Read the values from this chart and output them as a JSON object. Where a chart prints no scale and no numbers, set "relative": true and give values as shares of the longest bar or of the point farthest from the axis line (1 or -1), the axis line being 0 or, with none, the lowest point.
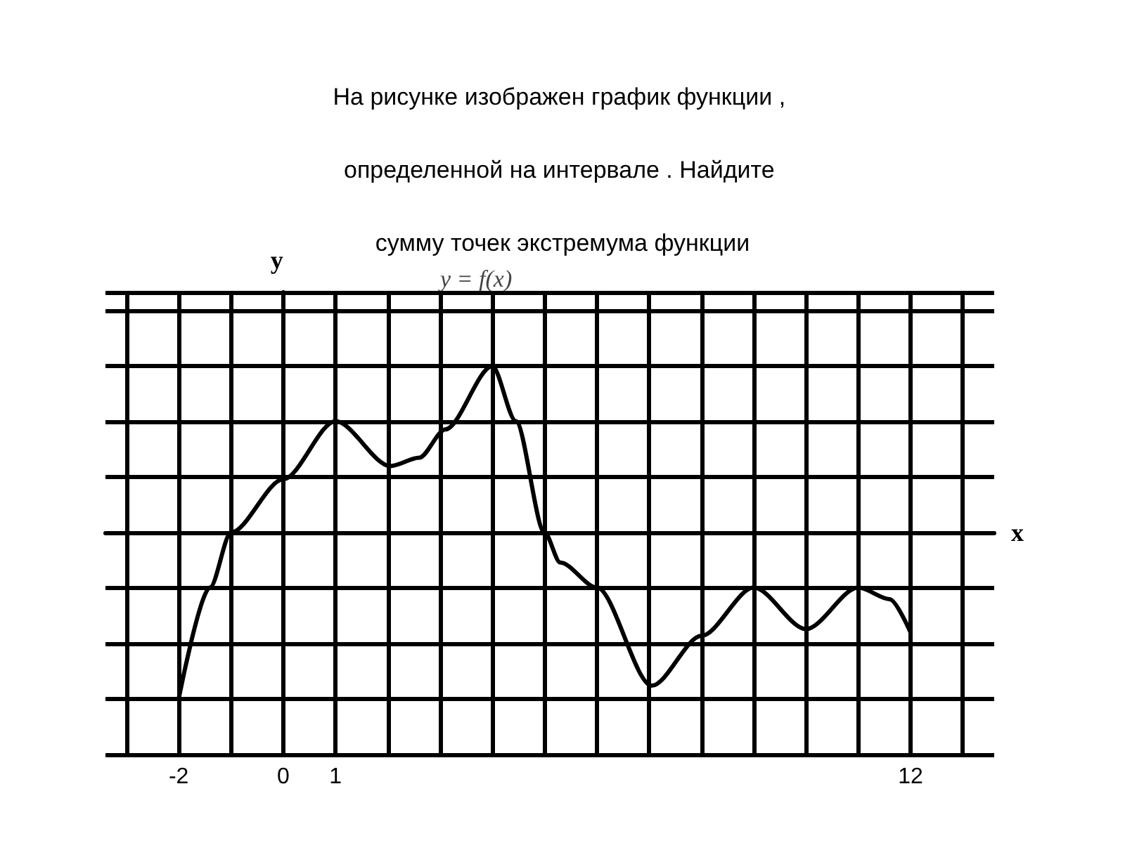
{
  "chart_data": {
    "type": "line",
    "title": "На рисунке изображен график функции , определенной на интервале . Найдите сумму точек экстремума функции",
    "xlabel": "x",
    "ylabel": "y",
    "annotations": [
      "y = f(x)"
    ],
    "relative": true,
    "x": [
      -2,
      -1.4,
      -1,
      0,
      1,
      2.05,
      2.6,
      3.1,
      4,
      4.45,
      5,
      5.3,
      6,
      7.05,
      8,
      9,
      10,
      11,
      11.6,
      12
    ],
    "series": [
      {
        "color": "#000000",
        "values": [
          -1,
          -0.33,
          0,
          0.32,
          0.67,
          0.4,
          0.45,
          0.62,
          1,
          0.67,
          0,
          -0.18,
          -0.33,
          -0.92,
          -0.62,
          -0.33,
          -0.58,
          -0.33,
          -0.4,
          -0.6
        ]
      }
    ],
    "xlim": [
      -3.4,
      13.6
    ],
    "xticks": [
      {
        "value": -3,
        "label": null
      },
      -2,
      {
        "value": -1,
        "label": null
      },
      0,
      1,
      {
        "value": 2,
        "label": null
      },
      {
        "value": 3,
        "label": null
      },
      {
        "value": 4,
        "label": null
      },
      {
        "value": 5,
        "label": null
      },
      {
        "value": 6,
        "label": null
      },
      {
        "value": 7,
        "label": null
      },
      {
        "value": 8,
        "label": null
      },
      {
        "value": 9,
        "label": null
      },
      {
        "value": 10,
        "label": null
      },
      {
        "value": 11,
        "label": null
      },
      12,
      {
        "value": 13,
        "label": null
      }
    ],
    "grid": true,
    "tick_labels": "x",
    "marker": "none",
    "line_style": "solid"
  }
}
